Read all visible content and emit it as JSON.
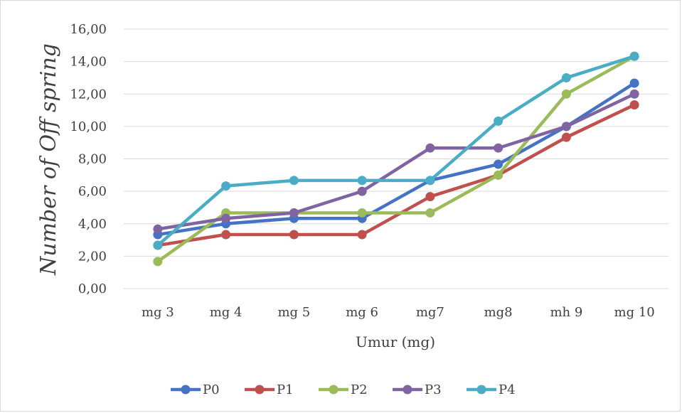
{
  "chart_data": {
    "type": "line",
    "title": "",
    "xlabel": "Umur (mg)",
    "ylabel": "Number of Off spring",
    "categories": [
      "mg 3",
      "mg 4",
      "mg 5",
      "mg 6",
      "mg7",
      "mg8",
      "mh 9",
      "mg 10"
    ],
    "y_ticks": [
      "0,00",
      "2,00",
      "4,00",
      "6,00",
      "8,00",
      "10,00",
      "12,00",
      "14,00",
      "16,00"
    ],
    "ylim": [
      0,
      16
    ],
    "grid": true,
    "legend_position": "bottom",
    "series": [
      {
        "name": "P0",
        "color": "#4472c4",
        "values": [
          3.33,
          4.0,
          4.33,
          4.33,
          6.67,
          7.67,
          10.0,
          12.67
        ]
      },
      {
        "name": "P1",
        "color": "#c0504d",
        "values": [
          2.67,
          3.33,
          3.33,
          3.33,
          5.67,
          7.0,
          9.33,
          11.33
        ]
      },
      {
        "name": "P2",
        "color": "#9bbb59",
        "values": [
          1.67,
          4.67,
          4.67,
          4.67,
          4.67,
          7.0,
          12.0,
          14.33
        ]
      },
      {
        "name": "P3",
        "color": "#8064a2",
        "values": [
          3.67,
          4.33,
          4.67,
          6.0,
          8.67,
          8.67,
          10.0,
          12.0
        ]
      },
      {
        "name": "P4",
        "color": "#4bacc6",
        "values": [
          2.67,
          6.33,
          6.67,
          6.67,
          6.67,
          10.33,
          13.0,
          14.33
        ]
      }
    ]
  }
}
